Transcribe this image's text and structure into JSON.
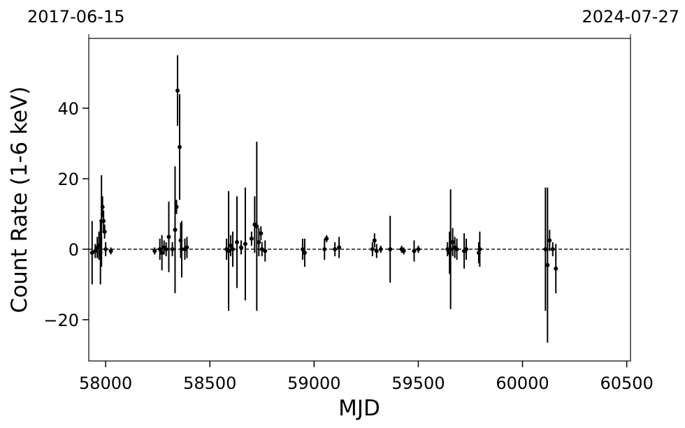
{
  "chart_data": {
    "type": "scatter",
    "x_label": "MJD",
    "y_label": "Count Rate (1-6 keV)",
    "xlim": [
      57919,
      60518
    ],
    "ylim": [
      -31.7,
      59.8
    ],
    "xticks": [
      58000,
      58500,
      59000,
      59500,
      60000,
      60500
    ],
    "yticks": [
      {
        "value": -20,
        "label": "−20"
      },
      0,
      20,
      40
    ],
    "top_xticks": [
      {
        "value": 57919,
        "label": "2017-06-15"
      },
      {
        "value": 60518,
        "label": "2024-07-27"
      }
    ],
    "hline": 0,
    "color": "#000000",
    "x": [
      57935,
      57950,
      57960,
      57968,
      57975,
      57980,
      57985,
      57990,
      57995,
      58000,
      58025,
      58235,
      58260,
      58270,
      58280,
      58290,
      58303,
      58320,
      58333,
      58340,
      58345,
      58355,
      58360,
      58365,
      58380,
      58390,
      58580,
      58590,
      58600,
      58610,
      58630,
      58650,
      58670,
      58700,
      58715,
      58725,
      58735,
      58745,
      58750,
      58765,
      58945,
      58955,
      59050,
      59060,
      59100,
      59120,
      59280,
      59290,
      59300,
      59320,
      59365,
      59420,
      59430,
      59480,
      59500,
      59640,
      59650,
      59655,
      59665,
      59675,
      59685,
      59720,
      59730,
      59790,
      59795,
      60110,
      60120,
      60130,
      60145,
      60160
    ],
    "values": [
      -1,
      -0.5,
      0.5,
      1,
      -1,
      8,
      12,
      8,
      5,
      0,
      -0.5,
      -0.5,
      0,
      -1,
      0.5,
      0,
      3.5,
      0,
      5.5,
      12,
      45,
      29,
      2.5,
      0,
      0,
      0.5,
      0,
      -0.5,
      1,
      0,
      2,
      0.5,
      1.5,
      3,
      7,
      6.5,
      2,
      4.5,
      0,
      -0.5,
      0,
      -1,
      0,
      3,
      0,
      0.5,
      0,
      2.5,
      -0.5,
      0,
      0,
      0,
      -0.5,
      -0.5,
      0,
      0,
      -1,
      0,
      2,
      0.5,
      0,
      -0.5,
      0,
      -1,
      0,
      0,
      -4.5,
      2.5,
      0,
      -5.5
    ],
    "errors": [
      9,
      2,
      3,
      4,
      9,
      13,
      3,
      3,
      2,
      2,
      1,
      1,
      3,
      5,
      2,
      2,
      10,
      2,
      18,
      2,
      10,
      15,
      5,
      8,
      3,
      3,
      3,
      17,
      3,
      5,
      13,
      2,
      16,
      2,
      8,
      24,
      4,
      2,
      2,
      3,
      3,
      4,
      3,
      1,
      2,
      3,
      2,
      2,
      2,
      1,
      9.5,
      1,
      1,
      3,
      1,
      2,
      6,
      17,
      4,
      3,
      3,
      5,
      3,
      3,
      5,
      17.5,
      22,
      3,
      2,
      7
    ]
  }
}
